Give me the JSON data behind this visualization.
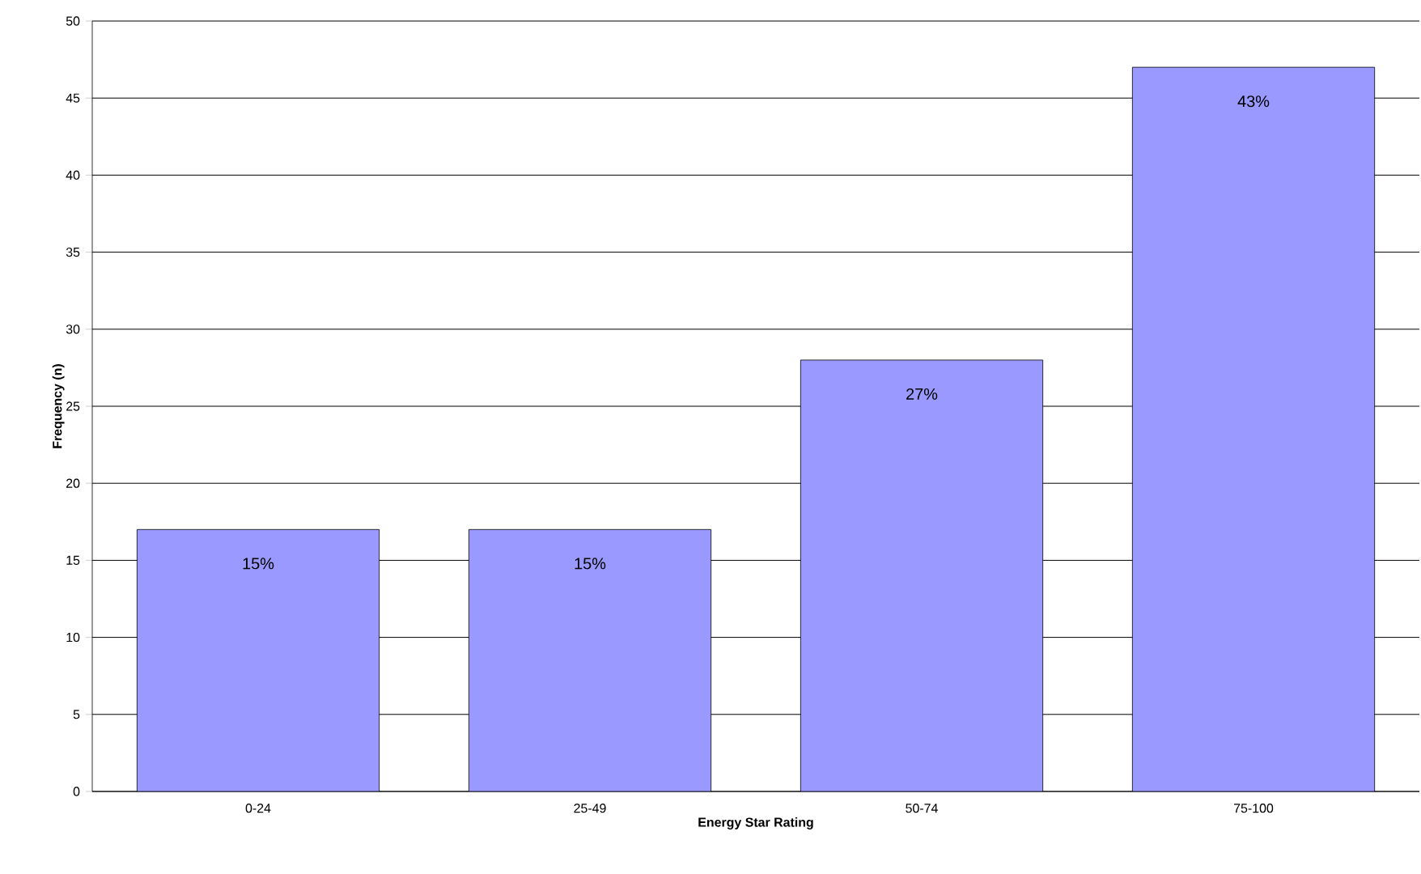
{
  "chart_data": {
    "type": "bar",
    "xlabel": "Energy Star Rating",
    "ylabel": "Frequency (n)",
    "categories": [
      "0-24",
      "25-49",
      "50-74",
      "75-100"
    ],
    "values": [
      17,
      17,
      28,
      47
    ],
    "annotations": [
      {
        "text": "15%",
        "x": "0-24",
        "y": 17
      },
      {
        "text": "15%",
        "x": "25-49",
        "y": 17
      },
      {
        "text": "27%",
        "x": "50-74",
        "y": 28
      },
      {
        "text": "43%",
        "x": "75-100",
        "y": 47
      }
    ],
    "color": "#9999ff",
    "ylim": [
      0,
      50
    ],
    "yticks": [
      0,
      5,
      10,
      15,
      20,
      25,
      30,
      35,
      40,
      45,
      50
    ],
    "grid": "y"
  }
}
